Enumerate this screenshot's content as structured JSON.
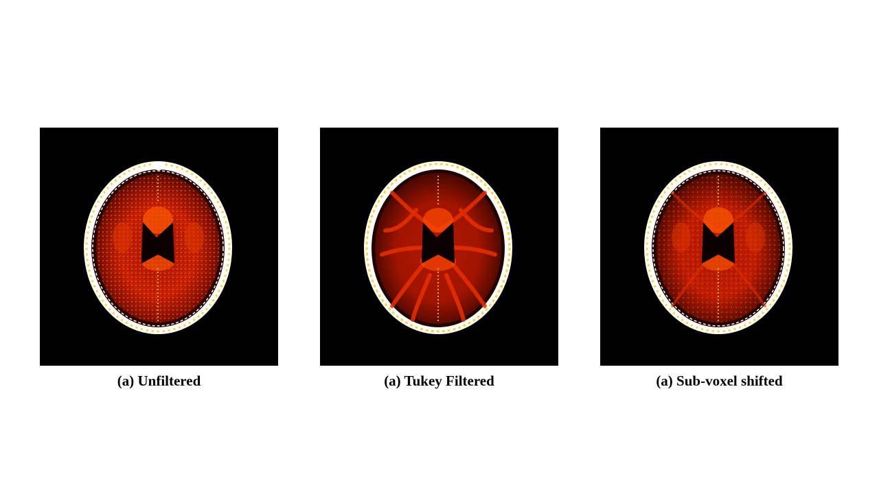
{
  "panels": [
    {
      "caption": "(a) Unfiltered",
      "variant": "unfiltered"
    },
    {
      "caption": "(a) Tukey Filtered",
      "variant": "tukey"
    },
    {
      "caption": "(a) Sub-voxel shifted",
      "variant": "subvoxel"
    }
  ],
  "colors": {
    "background": "#000000",
    "skull": "#ffffff",
    "hot_dark": "#5a0a00",
    "hot_mid": "#c81e00",
    "hot_bright": "#ff5a00",
    "hot_yellow": "#ffd23c"
  }
}
